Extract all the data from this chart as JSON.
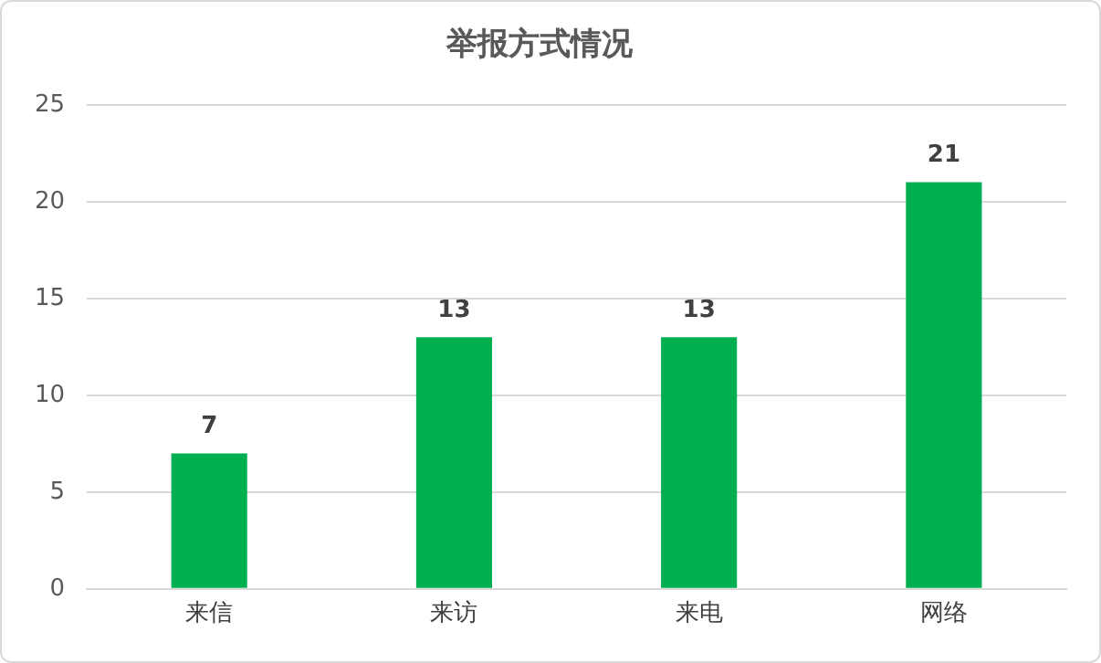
{
  "chart_data": {
    "type": "bar",
    "title": "举报方式情况",
    "categories": [
      "来信",
      "来访",
      "来电",
      "网络"
    ],
    "values": [
      7,
      13,
      13,
      21
    ],
    "color": "#00b050",
    "ylim": [
      0,
      25
    ],
    "yticks": [
      0,
      5,
      10,
      15,
      20,
      25
    ],
    "grid": "y",
    "data_labels": true
  }
}
